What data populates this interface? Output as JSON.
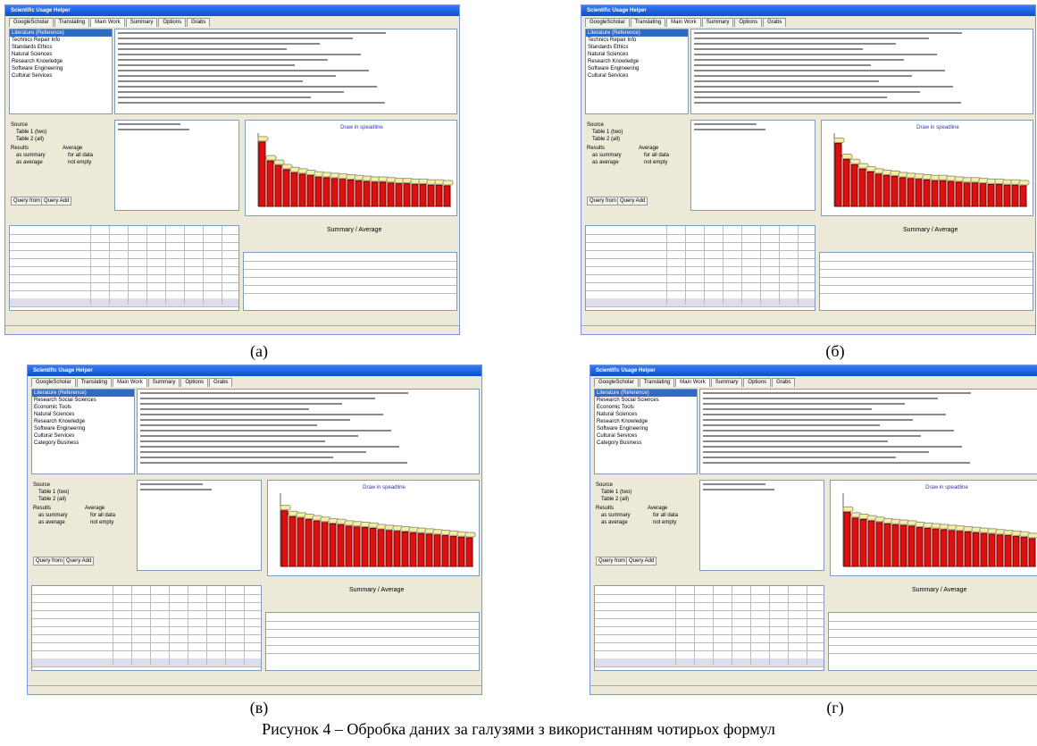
{
  "figure": {
    "caption": "Рисунок 4 – Обробка даних за галузями з використанням чотирьох формул",
    "panels": [
      {
        "label": "(а)",
        "window_title": "Scientific Usage Helper",
        "tabs": [
          "GoogleScholar",
          "Translating",
          "Main Work",
          "Summary",
          "Options",
          "Grabs"
        ],
        "list_items": [
          "Literature (Reference)",
          "Technics Repair Info",
          "Standards Ethics",
          "Natural Sciences",
          "Research Knowledge",
          "Software Engineering",
          "Cultural Services"
        ],
        "controls": [
          "Source",
          "Table 1 (two)",
          "Table 2 (all)",
          "Results",
          "as summary",
          "as average",
          "Average",
          "for all data",
          "not empty",
          "Query from",
          "Query Add"
        ],
        "chart_title": "Draw in speadline",
        "summary_title": "Summary / Average",
        "ylim": [
          0,
          100
        ],
        "bars": [
          88,
          62,
          56,
          50,
          46,
          44,
          42,
          40,
          39,
          38,
          37,
          36,
          35,
          34,
          33,
          33,
          32,
          31,
          31,
          30,
          30,
          29,
          29,
          28
        ]
      },
      {
        "label": "(б)",
        "window_title": "Scientific Usage Helper",
        "tabs": [
          "GoogleScholar",
          "Translating",
          "Main Work",
          "Summary",
          "Options",
          "Grabs"
        ],
        "list_items": [
          "Literature (Reference)",
          "Technics Repair Info",
          "Standards Ethics",
          "Natural Sciences",
          "Research Knowledge",
          "Software Engineering",
          "Cultural Services"
        ],
        "controls": [
          "Source",
          "Table 1 (two)",
          "Table 2 (all)",
          "Results",
          "as summary",
          "as average",
          "Average",
          "for all data",
          "not empty",
          "Query from",
          "Query Add"
        ],
        "chart_title": "Draw in speadline",
        "summary_title": "Summary / Average",
        "ylim": [
          0,
          100
        ],
        "bars": [
          86,
          64,
          57,
          51,
          47,
          44,
          42,
          41,
          39,
          38,
          37,
          36,
          35,
          35,
          34,
          33,
          32,
          32,
          31,
          30,
          30,
          29,
          29,
          28
        ]
      },
      {
        "label": "(в)",
        "window_title": "Scientific Usage Helper",
        "tabs": [
          "GoogleScholar",
          "Translating",
          "Main Work",
          "Summary",
          "Options",
          "Grabs"
        ],
        "list_items": [
          "Literature (Reference)",
          "Research Social Sciences",
          "Economic Tools",
          "Natural Sciences",
          "Research Knowledge",
          "Software Engineering",
          "Cultural Services",
          "Category Business"
        ],
        "controls": [
          "Source",
          "Table 1 (two)",
          "Table 2 (all)",
          "Results",
          "as summary",
          "as average",
          "Average",
          "for all data",
          "not empty",
          "Query from",
          "Query Add"
        ],
        "chart_title": "Draw in speadline",
        "summary_title": "Summary / Average",
        "ylim": [
          0,
          100
        ],
        "bars": [
          76,
          68,
          66,
          64,
          62,
          60,
          58,
          57,
          55,
          54,
          53,
          52,
          50,
          49,
          48,
          47,
          46,
          45,
          44,
          43,
          42,
          41,
          40,
          39
        ]
      },
      {
        "label": "(г)",
        "window_title": "Scientific Usage Helper",
        "tabs": [
          "GoogleScholar",
          "Translating",
          "Main Work",
          "Summary",
          "Options",
          "Grabs"
        ],
        "list_items": [
          "Literature (Reference)",
          "Research Social Sciences",
          "Economic Tools",
          "Natural Sciences",
          "Research Knowledge",
          "Software Engineering",
          "Cultural Services",
          "Category Business"
        ],
        "controls": [
          "Source",
          "Table 1 (two)",
          "Table 2 (all)",
          "Results",
          "as summary",
          "as average",
          "Average",
          "for all data",
          "not empty",
          "Query from",
          "Query Add"
        ],
        "chart_title": "Draw in speadline",
        "summary_title": "Summary / Average",
        "ylim": [
          0,
          100
        ],
        "bars": [
          74,
          66,
          64,
          62,
          60,
          58,
          57,
          56,
          55,
          53,
          52,
          51,
          50,
          49,
          48,
          47,
          46,
          45,
          44,
          43,
          42,
          41,
          40,
          38
        ]
      }
    ]
  }
}
